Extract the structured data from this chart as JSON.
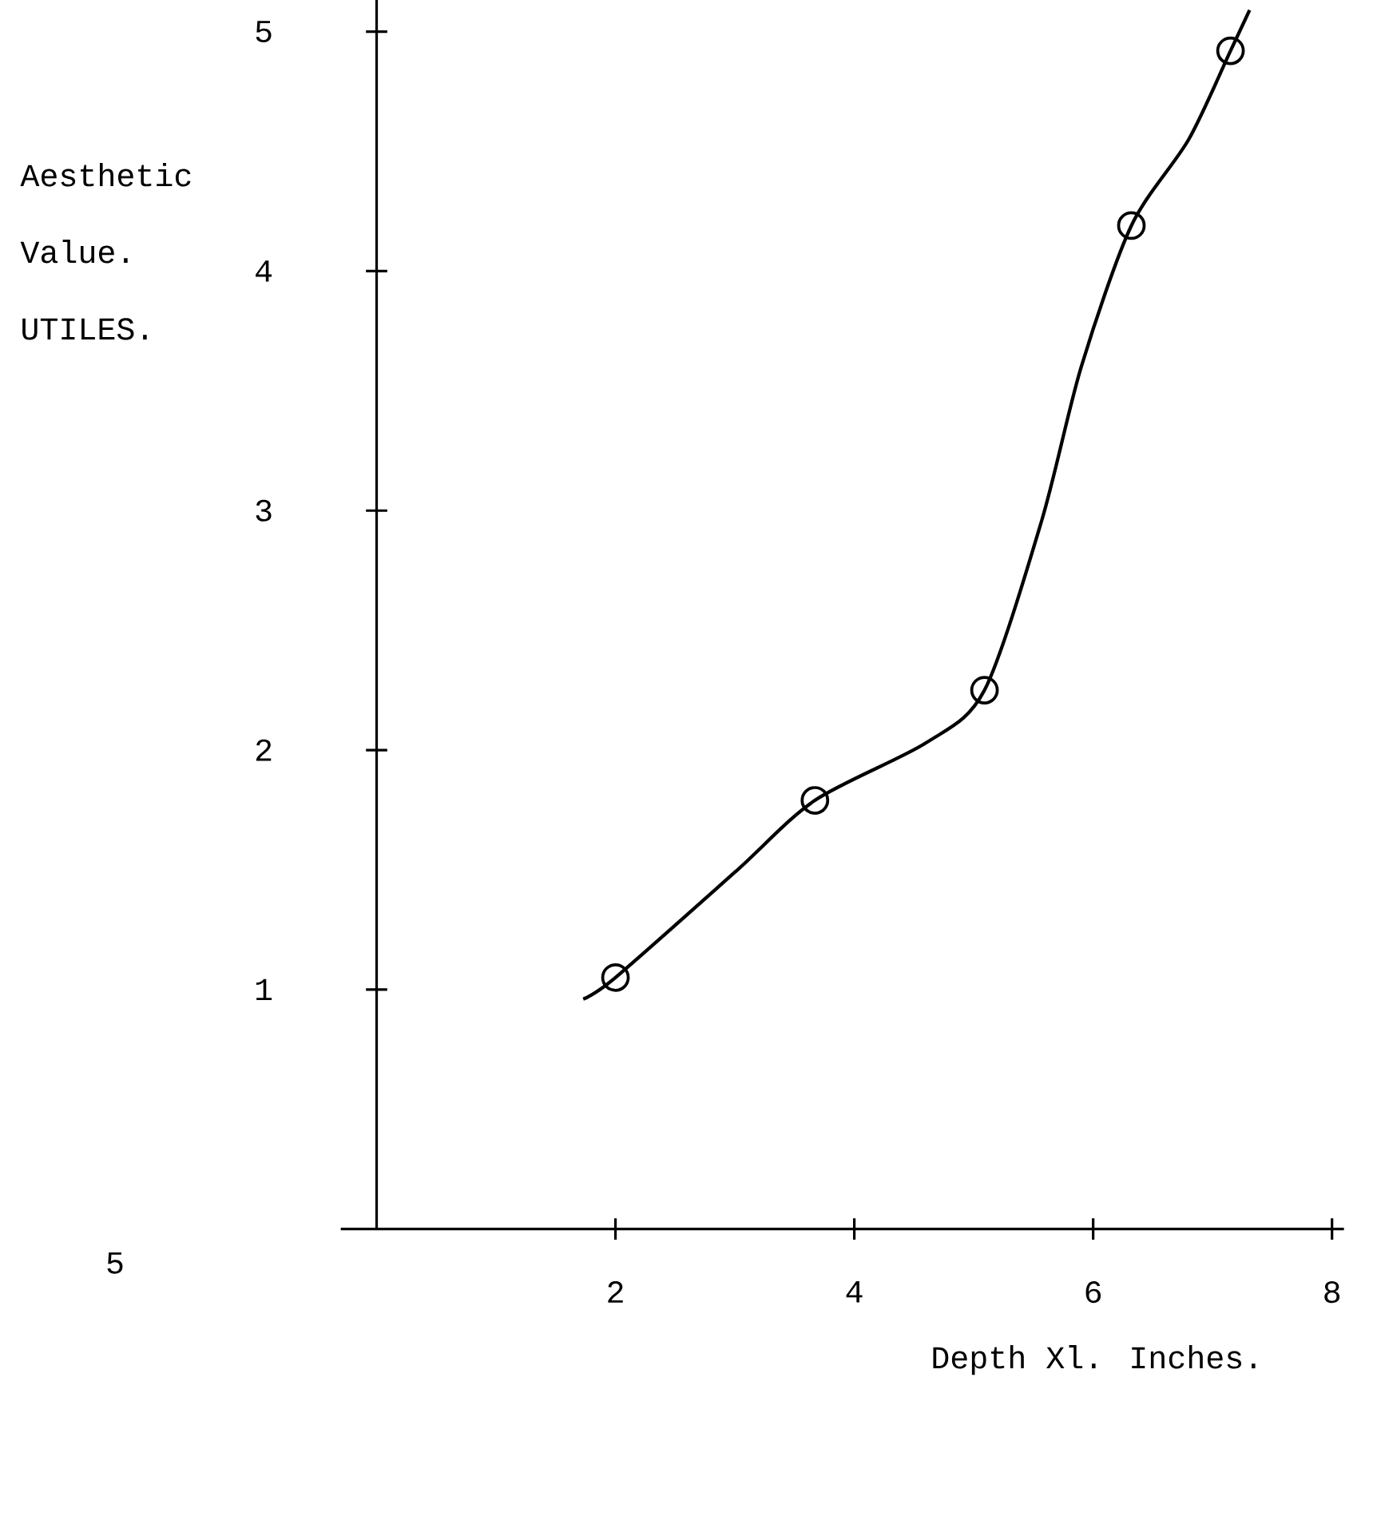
{
  "chart_data": {
    "type": "line",
    "xlabel": "Depth Xl. Inches.",
    "ylabel": "Aesthetic Value. UTILES.",
    "xlim": [
      -0.3,
      8.1
    ],
    "ylim": [
      0,
      5.15
    ],
    "xticks": [
      2,
      4,
      6,
      8
    ],
    "yticks": [
      1,
      2,
      3,
      4,
      5
    ],
    "grid": false,
    "series": [
      {
        "color": "#000000",
        "line_style": "solid",
        "x": [
          1.73,
          2.0,
          3.0,
          3.67,
          4.6,
          5.09,
          5.57,
          5.9,
          6.32,
          6.8,
          7.15,
          7.31
        ],
        "values": [
          0.96,
          1.05,
          1.49,
          1.79,
          2.03,
          2.25,
          2.96,
          3.6,
          4.19,
          4.55,
          4.92,
          5.09
        ]
      },
      {
        "type": "scatter",
        "color": "#000000",
        "marker": "circle",
        "x": [
          2.0,
          3.67,
          5.09,
          6.32,
          7.15
        ],
        "values": [
          1.05,
          1.79,
          2.25,
          4.19,
          4.92
        ]
      }
    ],
    "annotations": [
      "5"
    ]
  }
}
